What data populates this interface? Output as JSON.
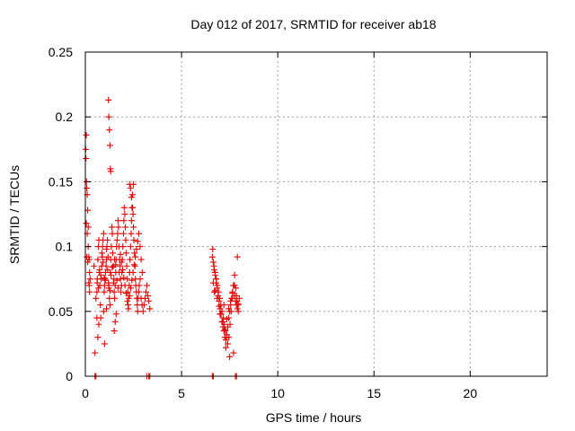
{
  "chart_data": {
    "type": "scatter",
    "title": "Day 012 of 2017, SRMTID for receiver ab18",
    "xlabel": "GPS time / hours",
    "ylabel": "SRMTID / TECUs",
    "xlim": [
      0,
      24
    ],
    "ylim": [
      0,
      0.25
    ],
    "xticks": [
      0,
      5,
      10,
      15,
      20
    ],
    "xtick_labels": [
      "0",
      "5",
      "10",
      "15",
      "20"
    ],
    "yticks": [
      0,
      0.05,
      0.1,
      0.15,
      0.2,
      0.25
    ],
    "ytick_labels": [
      "0",
      "0.05",
      "0.1",
      "0.15",
      "0.2",
      "0.25"
    ],
    "grid": true,
    "legend": "none",
    "marker": "plus",
    "color": "#e00000",
    "series": [
      {
        "x": [
          0.02,
          0.03,
          0.05,
          0.06,
          0.08,
          0.1,
          0.12,
          0.15,
          0.18,
          0.2,
          0.22,
          0.25,
          0.05,
          0.1,
          0.15,
          0.2,
          0.08,
          0.12,
          0.18,
          0.22,
          0.45,
          0.5,
          0.55,
          0.6,
          0.62,
          0.65,
          0.68,
          0.7,
          0.72,
          0.75,
          0.78,
          0.8,
          0.82,
          0.85,
          0.88,
          0.9,
          0.92,
          0.95,
          0.98,
          1.0,
          1.02,
          1.05,
          1.08,
          1.1,
          1.12,
          1.15,
          1.18,
          1.2,
          1.22,
          1.25,
          1.28,
          1.3,
          1.32,
          1.35,
          1.38,
          1.4,
          1.42,
          1.45,
          1.48,
          1.5,
          1.52,
          1.55,
          1.58,
          1.6,
          1.62,
          1.65,
          1.68,
          1.7,
          1.72,
          1.75,
          1.78,
          1.8,
          1.82,
          1.85,
          1.88,
          1.9,
          1.92,
          1.95,
          1.98,
          2.0,
          2.02,
          2.05,
          2.08,
          2.1,
          2.12,
          2.15,
          2.18,
          2.2,
          2.22,
          2.25,
          2.28,
          2.3,
          2.32,
          2.35,
          2.38,
          2.4,
          2.42,
          2.45,
          2.48,
          2.5,
          2.52,
          2.55,
          2.58,
          2.6,
          2.62,
          2.65,
          2.68,
          2.7,
          2.72,
          2.75,
          2.78,
          2.8,
          2.85,
          2.9,
          2.95,
          3.0,
          3.05,
          3.1,
          3.15,
          3.2,
          3.25,
          3.3,
          3.35,
          1.2,
          1.22,
          1.25,
          1.28,
          1.3,
          1.32,
          0.6,
          0.7,
          0.65,
          1.5,
          1.55,
          1.6,
          1.0,
          0.95,
          1.1,
          2.3,
          2.35,
          2.4,
          2.45,
          2.5,
          0.62,
          0.68,
          0.74,
          0.8,
          0.86,
          0.92,
          0.98,
          1.04,
          1.1,
          1.16,
          1.22,
          1.28,
          1.34,
          1.4,
          1.46,
          1.52,
          1.58,
          1.64,
          1.7,
          1.76,
          1.82,
          1.88,
          1.94,
          2.0,
          2.06,
          2.12,
          2.18,
          2.24,
          2.3,
          2.36,
          2.42,
          2.48,
          2.54,
          2.6,
          2.66,
          2.72,
          2.78,
          2.84,
          2.9,
          2.96,
          6.6,
          6.65,
          6.7,
          6.75,
          6.8,
          6.85,
          6.9,
          6.95,
          7.0,
          7.05,
          7.1,
          7.15,
          7.2,
          7.25,
          7.3,
          7.35,
          7.4,
          7.45,
          7.5,
          7.55,
          7.6,
          7.65,
          7.7,
          7.75,
          7.8,
          7.85,
          7.9,
          7.95,
          8.0,
          6.62,
          6.68,
          6.74,
          6.8,
          6.86,
          6.92,
          6.98,
          7.04,
          7.1,
          7.16,
          7.22,
          7.28,
          7.34,
          7.4,
          7.46,
          7.52,
          7.58,
          7.64,
          7.7,
          7.76,
          7.82,
          7.88,
          7.94,
          6.7,
          6.8,
          7.0,
          7.2,
          7.3,
          7.5,
          7.7,
          7.9,
          6.65,
          6.75,
          6.85,
          6.95,
          7.05,
          7.15,
          7.25,
          7.35,
          7.45,
          7.55,
          7.65,
          7.75,
          7.85,
          7.95,
          0.5,
          0.55,
          3.2,
          3.3,
          3.35,
          6.6,
          6.65,
          7.8,
          7.85
        ],
        "y": [
          0.175,
          0.168,
          0.186,
          0.15,
          0.145,
          0.14,
          0.128,
          0.115,
          0.092,
          0.09,
          0.08,
          0.075,
          0.118,
          0.11,
          0.1,
          0.07,
          0.092,
          0.088,
          0.072,
          0.065,
          0.085,
          0.018,
          0.06,
          0.065,
          0.075,
          0.09,
          0.1,
          0.105,
          0.08,
          0.07,
          0.055,
          0.045,
          0.075,
          0.085,
          0.092,
          0.1,
          0.105,
          0.11,
          0.065,
          0.07,
          0.075,
          0.08,
          0.085,
          0.09,
          0.1,
          0.105,
          0.092,
          0.072,
          0.068,
          0.06,
          0.055,
          0.08,
          0.09,
          0.1,
          0.115,
          0.11,
          0.095,
          0.085,
          0.075,
          0.065,
          0.06,
          0.07,
          0.08,
          0.09,
          0.1,
          0.105,
          0.11,
          0.12,
          0.115,
          0.1,
          0.09,
          0.085,
          0.075,
          0.065,
          0.07,
          0.08,
          0.09,
          0.1,
          0.11,
          0.12,
          0.13,
          0.125,
          0.115,
          0.105,
          0.095,
          0.085,
          0.075,
          0.065,
          0.055,
          0.06,
          0.07,
          0.08,
          0.09,
          0.1,
          0.11,
          0.12,
          0.13,
          0.14,
          0.125,
          0.115,
          0.105,
          0.095,
          0.085,
          0.075,
          0.07,
          0.065,
          0.06,
          0.055,
          0.05,
          0.06,
          0.065,
          0.07,
          0.075,
          0.06,
          0.055,
          0.05,
          0.055,
          0.06,
          0.065,
          0.07,
          0.062,
          0.058,
          0.052,
          0.213,
          0.2,
          0.19,
          0.178,
          0.16,
          0.158,
          0.045,
          0.04,
          0.03,
          0.035,
          0.042,
          0.048,
          0.025,
          0.05,
          0.052,
          0.148,
          0.145,
          0.138,
          0.13,
          0.148,
          0.072,
          0.068,
          0.082,
          0.078,
          0.095,
          0.088,
          0.076,
          0.074,
          0.098,
          0.082,
          0.07,
          0.066,
          0.078,
          0.084,
          0.072,
          0.09,
          0.086,
          0.074,
          0.068,
          0.08,
          0.094,
          0.088,
          0.082,
          0.076,
          0.07,
          0.064,
          0.058,
          0.052,
          0.062,
          0.068,
          0.074,
          0.08,
          0.086,
          0.092,
          0.098,
          0.104,
          0.11,
          0.1,
          0.09,
          0.08,
          0.092,
          0.088,
          0.082,
          0.078,
          0.072,
          0.068,
          0.062,
          0.058,
          0.052,
          0.048,
          0.042,
          0.038,
          0.035,
          0.03,
          0.028,
          0.032,
          0.038,
          0.045,
          0.05,
          0.055,
          0.06,
          0.065,
          0.07,
          0.062,
          0.058,
          0.055,
          0.052,
          0.05,
          0.06,
          0.098,
          0.085,
          0.08,
          0.075,
          0.07,
          0.065,
          0.06,
          0.055,
          0.05,
          0.045,
          0.04,
          0.035,
          0.03,
          0.025,
          0.03,
          0.04,
          0.05,
          0.06,
          0.07,
          0.078,
          0.068,
          0.058,
          0.055,
          0.065,
          0.075,
          0.048,
          0.055,
          0.022,
          0.015,
          0.018,
          0.092,
          0.072,
          0.066,
          0.06,
          0.054,
          0.048,
          0.042,
          0.036,
          0.044,
          0.052,
          0.058,
          0.064,
          0.07,
          0.062,
          0.056,
          0,
          0,
          0,
          0,
          0,
          0,
          0,
          0,
          0
        ]
      }
    ]
  }
}
